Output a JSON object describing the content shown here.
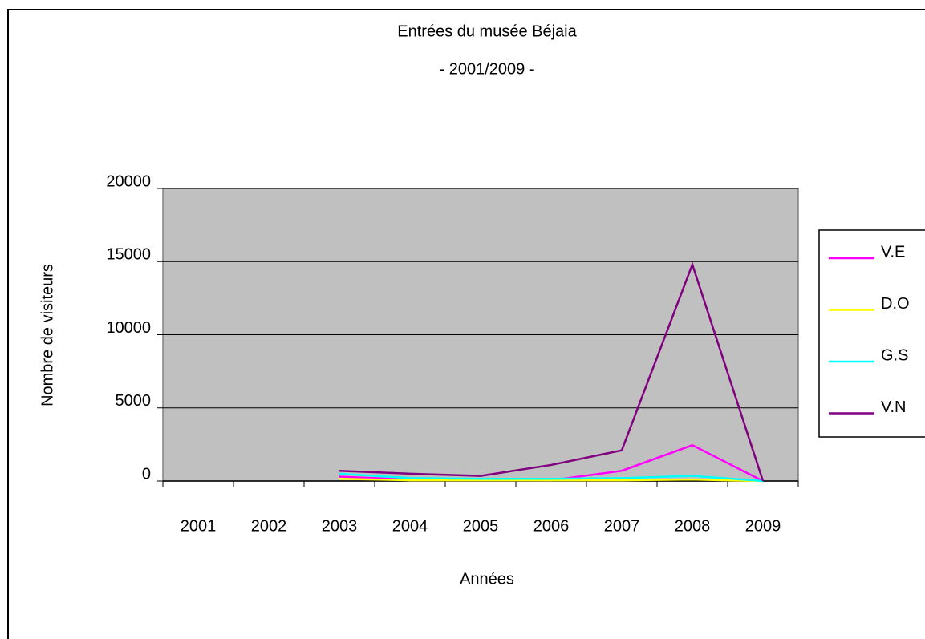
{
  "chart_data": {
    "type": "line",
    "title": "Entrées du musée Béjaia",
    "subtitle": "- 2001/2009 -",
    "x_label": "Années",
    "y_label": "Nombre de visiteurs",
    "categories": [
      "2001",
      "2002",
      "2003",
      "2004",
      "2005",
      "2006",
      "2007",
      "2008",
      "2009"
    ],
    "series": [
      {
        "name": "V.E",
        "color": "#ff00ff",
        "values": [
          null,
          null,
          300,
          100,
          100,
          50,
          700,
          2450,
          0
        ]
      },
      {
        "name": "D.O",
        "color": "#ffff00",
        "values": [
          null,
          null,
          150,
          50,
          50,
          50,
          50,
          100,
          0
        ]
      },
      {
        "name": "G.S",
        "color": "#00ffff",
        "values": [
          null,
          null,
          500,
          200,
          150,
          150,
          200,
          350,
          0
        ]
      },
      {
        "name": "V.N",
        "color": "#800080",
        "values": [
          null,
          null,
          700,
          500,
          350,
          1100,
          2100,
          14800,
          0
        ]
      }
    ],
    "ylim": [
      0,
      20000
    ],
    "yticks": [
      0,
      5000,
      10000,
      15000,
      20000
    ],
    "grid": true,
    "legend": "right",
    "plot_background": "#c0c0c0"
  }
}
